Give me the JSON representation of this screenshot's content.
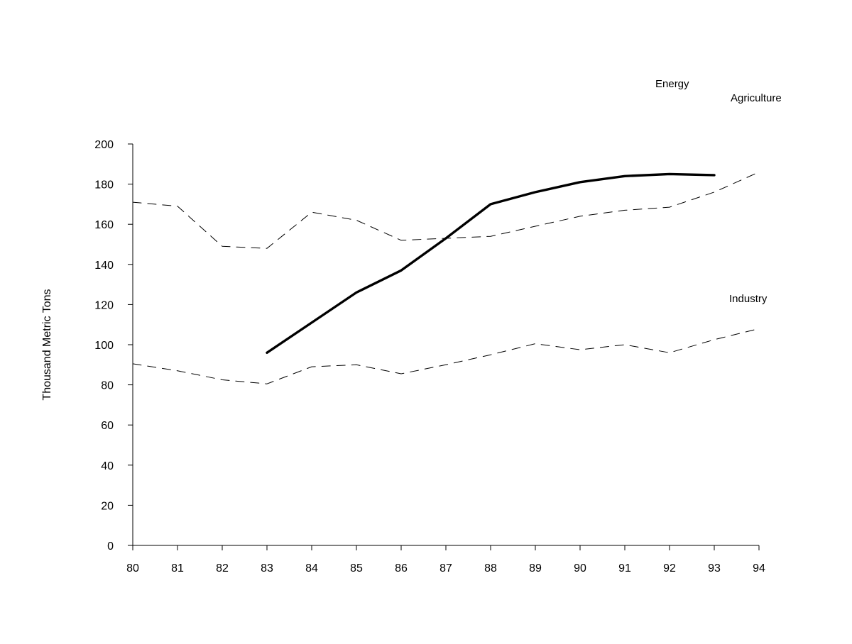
{
  "chart_data": {
    "type": "line",
    "title": "",
    "xlabel": "",
    "ylabel": "Thousand Metric Tons",
    "x": [
      "80",
      "81",
      "82",
      "83",
      "84",
      "85",
      "86",
      "87",
      "88",
      "89",
      "90",
      "91",
      "92",
      "93",
      "94"
    ],
    "ylim": [
      0,
      200
    ],
    "yticks": [
      0,
      20,
      40,
      60,
      80,
      100,
      120,
      140,
      160,
      180,
      200
    ],
    "grid": false,
    "legend": "direct labels at series ends",
    "series": [
      {
        "name": "Energy",
        "style": "solid-thick",
        "color": "#000000",
        "values": [
          null,
          null,
          null,
          96,
          111,
          126,
          137,
          153,
          170,
          176,
          181,
          184,
          185,
          184.5,
          null
        ]
      },
      {
        "name": "Agriculture",
        "style": "dashed",
        "color": "#000000",
        "values": [
          171,
          169,
          149,
          148,
          166,
          162,
          152,
          153,
          154,
          159,
          164,
          167,
          168.5,
          176,
          186
        ]
      },
      {
        "name": "Industry",
        "style": "dashed",
        "color": "#000000",
        "values": [
          90.5,
          87,
          82.5,
          80.5,
          89,
          90,
          85.5,
          90,
          95,
          100.5,
          97.5,
          100,
          96,
          102.5,
          108
        ]
      }
    ]
  }
}
